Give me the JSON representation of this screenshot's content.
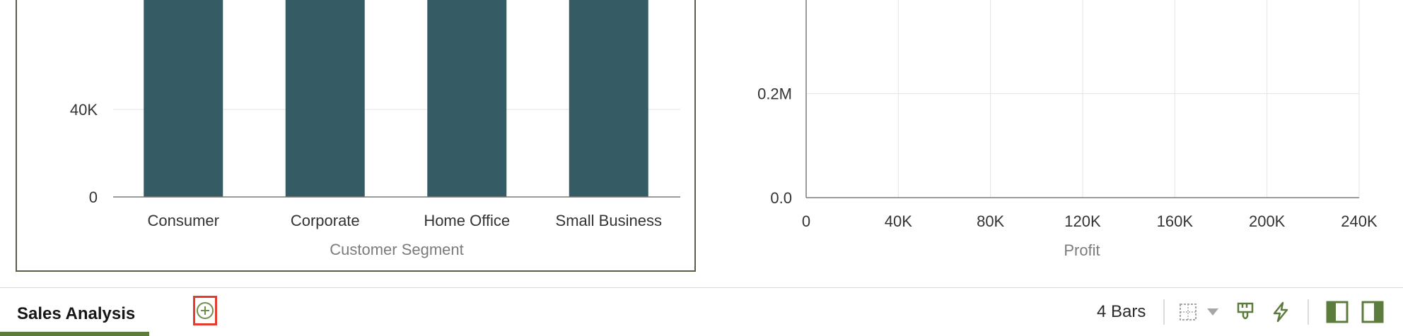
{
  "chart_data": [
    {
      "type": "bar",
      "categories": [
        "Consumer",
        "Corporate",
        "Home Office",
        "Small Business"
      ],
      "values": [
        90000,
        90000,
        90000,
        90000
      ],
      "xlabel": "Customer Segment",
      "ylabel": "",
      "y_ticks": [
        "0",
        "40K"
      ],
      "y_tick_values": [
        0,
        40000
      ],
      "ylim": [
        0,
        90000
      ],
      "color": "#355c64",
      "grid": true
    },
    {
      "type": "scatter",
      "x": [],
      "y": [],
      "xlabel": "Profit",
      "ylabel": "",
      "x_ticks": [
        "0",
        "40K",
        "80K",
        "120K",
        "160K",
        "200K",
        "240K"
      ],
      "x_tick_values": [
        0,
        40000,
        80000,
        120000,
        160000,
        200000,
        240000
      ],
      "y_ticks": [
        "0.0",
        "0.2M"
      ],
      "y_tick_values": [
        0,
        200000
      ],
      "xlim": [
        0,
        240000
      ],
      "ylim": [
        0,
        380000
      ],
      "grid": true
    }
  ],
  "footer": {
    "tab_label": "Sales Analysis",
    "status_count": "4 Bars"
  },
  "icons": {
    "add_tab": "plus-circle-icon",
    "grid_toggle": "grid-icon",
    "grid_dropdown": "chevron-down-icon",
    "properties": "paintbrush-icon",
    "actions": "lightning-icon",
    "panel_left": "panel-left-icon",
    "panel_right": "panel-right-icon"
  },
  "colors": {
    "bar": "#355c64",
    "accent": "#5c7c3e",
    "highlight": "#e33b2e"
  }
}
